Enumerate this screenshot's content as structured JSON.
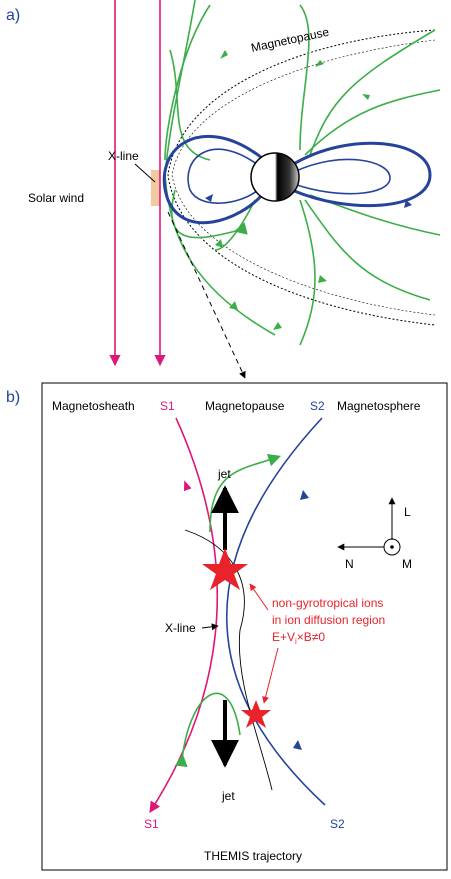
{
  "panel_a": {
    "label": "a)",
    "magnetopause": "Magnetopause",
    "x_line": "X-line",
    "solar_wind": "Solar wind"
  },
  "panel_b": {
    "label": "b)",
    "magnetosheath": "Magnetosheath",
    "s1_top": "S1",
    "magnetopause": "Magnetopause",
    "s2_top": "S2",
    "magnetosphere": "Magnetosphere",
    "jet_top": "jet",
    "axis_l": "L",
    "axis_n": "N",
    "axis_m": "M",
    "annotation": [
      "non-gyrotropical ions",
      "in ion diffusion region"
    ],
    "equation": {
      "main": "E+V",
      "subscript": "i",
      "rest": "×B≠0"
    },
    "x_line": "X-line",
    "jet_bottom": "jet",
    "s1_bottom": "S1",
    "trajectory": "THEMIS trajectory",
    "s2_bottom": "S2"
  }
}
